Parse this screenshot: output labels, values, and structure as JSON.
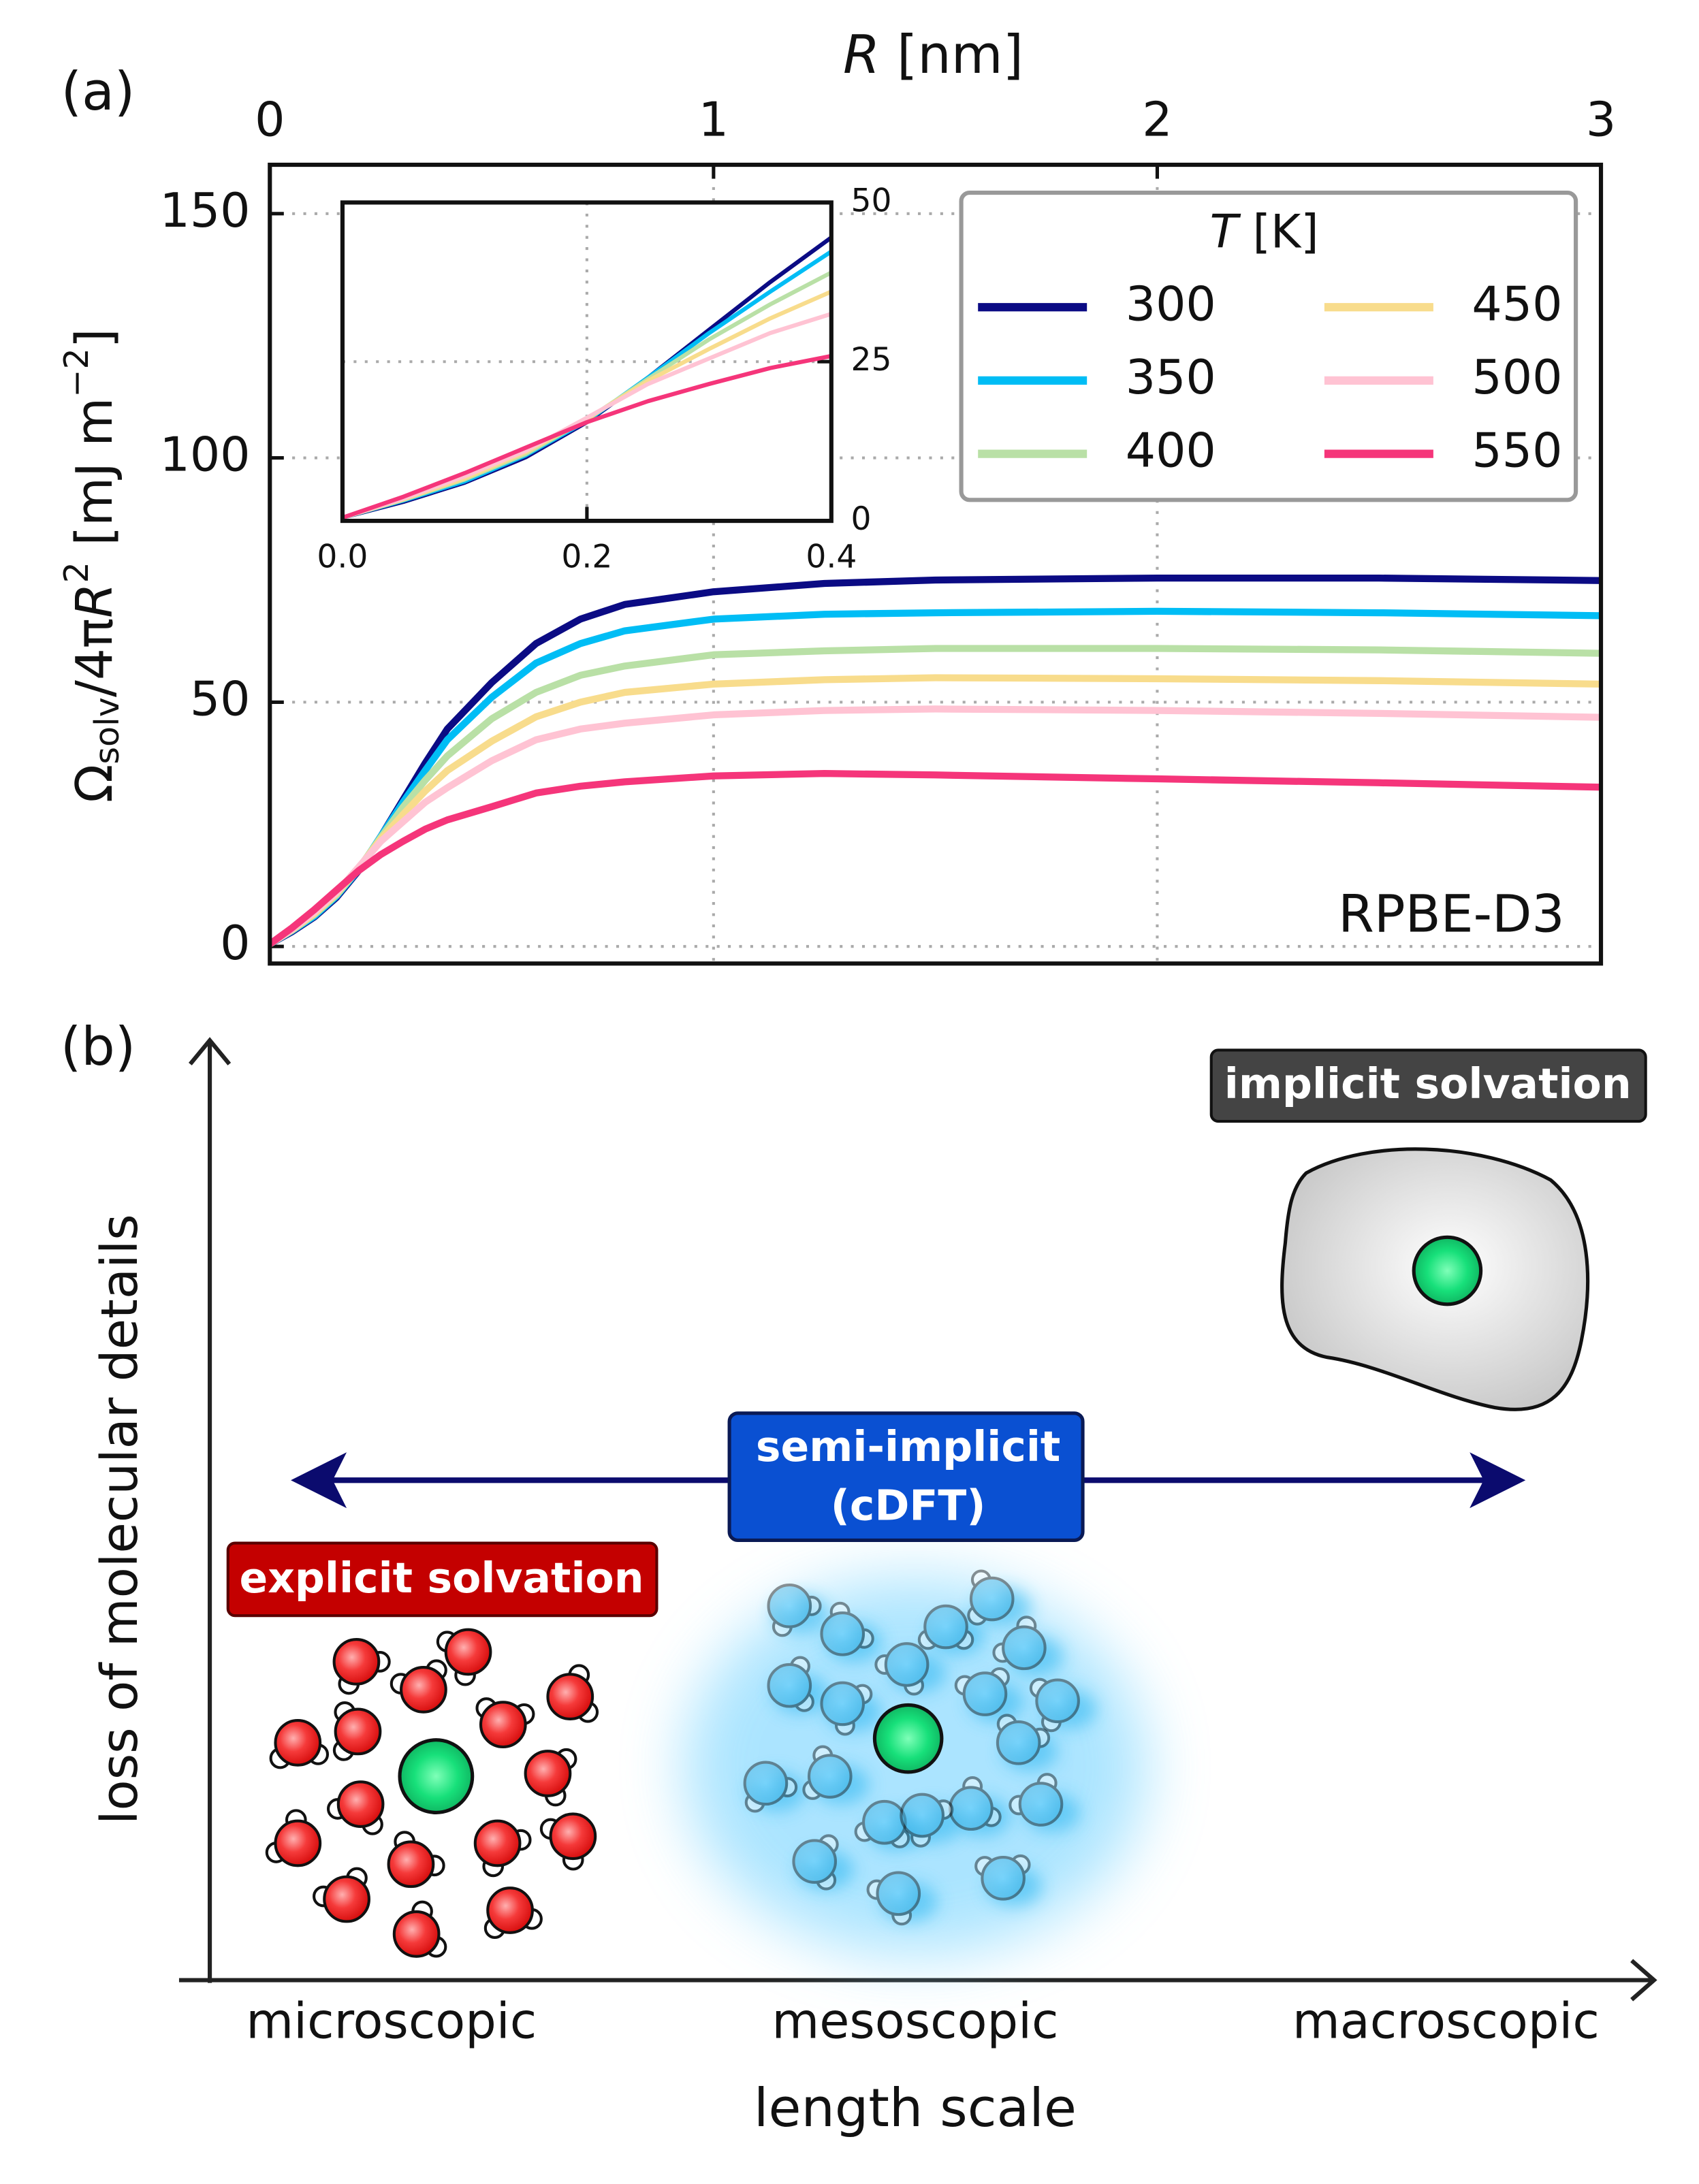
{
  "panel_labels": [
    "(a)",
    "(b)"
  ],
  "chart_data": [
    {
      "type": "line",
      "xlabel": [
        "R",
        " [nm]"
      ],
      "ylabel": [
        "Ω",
        "solv",
        "/4π",
        "R",
        "2",
        " [mJ m",
        "−2",
        "]"
      ],
      "annotation": "RPBE-D3",
      "x": [
        0,
        0.05,
        0.1,
        0.15,
        0.2,
        0.25,
        0.3,
        0.35,
        0.4,
        0.5,
        0.6,
        0.7,
        0.8,
        1.0,
        1.25,
        1.5,
        2.0,
        2.5,
        3.0
      ],
      "series": [
        {
          "name": "300",
          "color": "#0b0b84",
          "values": [
            0.5,
            3,
            6,
            10,
            15.5,
            22.5,
            30,
            37.5,
            44.5,
            54,
            62,
            67,
            70,
            72.6,
            74.3,
            75,
            75.4,
            75.4,
            74.9
          ]
        },
        {
          "name": "350",
          "color": "#00bdf5",
          "values": [
            0.5,
            3.2,
            6.2,
            10.3,
            15.7,
            22.5,
            29.5,
            36,
            42.3,
            51,
            58,
            62,
            64.6,
            67,
            68,
            68.3,
            68.6,
            68.3,
            67.7
          ]
        },
        {
          "name": "400",
          "color": "#b9e0a6",
          "values": [
            0.5,
            3.3,
            6.5,
            10.5,
            15.9,
            22.3,
            28.5,
            34,
            39,
            46.6,
            52,
            55.5,
            57.4,
            59.7,
            60.5,
            61,
            61,
            60.7,
            60
          ]
        },
        {
          "name": "450",
          "color": "#f8dc8c",
          "values": [
            0.5,
            3.4,
            6.7,
            10.8,
            16,
            22,
            27,
            31.8,
            36,
            42,
            47,
            50,
            52,
            53.7,
            54.6,
            55,
            54.8,
            54.4,
            53.7
          ]
        },
        {
          "name": "500",
          "color": "#ffc3d3",
          "values": [
            0.5,
            3.5,
            7,
            11,
            16.2,
            21.5,
            25.5,
            29.5,
            32.5,
            38,
            42.3,
            44.5,
            45.7,
            47.4,
            48.3,
            48.6,
            48.3,
            47.7,
            46.9
          ]
        },
        {
          "name": "550",
          "color": "#f5357a",
          "values": [
            0.5,
            3.8,
            7.5,
            11.5,
            15.5,
            18.8,
            21.5,
            24,
            25.9,
            28.6,
            31.4,
            32.8,
            33.7,
            34.9,
            35.4,
            35.1,
            34.3,
            33.5,
            32.6
          ]
        }
      ],
      "xlim": [
        0,
        3
      ],
      "ylim": [
        -3.5,
        160
      ],
      "xticks": [
        0,
        1,
        2,
        3
      ],
      "yticks": [
        0,
        50,
        100,
        150
      ],
      "grid": true,
      "legend": {
        "title": [
          "T",
          " [K]"
        ],
        "loc": "upper right",
        "ncol": 2
      }
    },
    {
      "type": "line",
      "xlim": [
        0,
        0.4
      ],
      "ylim": [
        0,
        50
      ],
      "xticks": [
        {
          "value": 0,
          "label": "0.0"
        },
        {
          "value": 0.2,
          "label": "0.2"
        },
        {
          "value": 0.4,
          "label": "0.4"
        }
      ],
      "yticks": [
        0,
        25,
        50
      ],
      "grid": true
    }
  ],
  "diagram": {
    "y_axis_label": "loss of molecular details",
    "x_axis_label": "length scale",
    "scale_labels": [
      "microscopic",
      "mesoscopic",
      "macroscopic"
    ],
    "implicit": "implicit solvation",
    "semi_implicit": [
      "semi-implicit",
      "(cDFT)"
    ],
    "explicit": "explicit solvation"
  }
}
